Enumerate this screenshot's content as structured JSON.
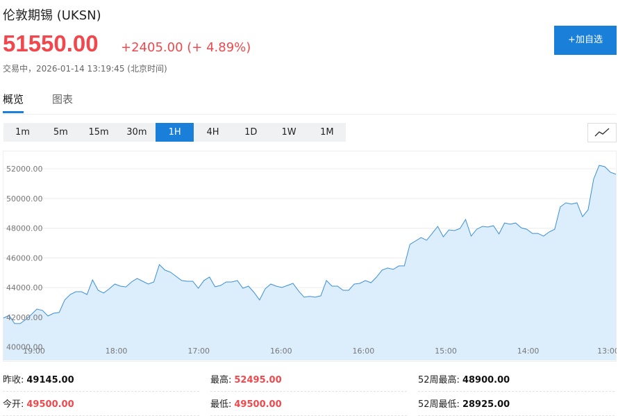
{
  "header": {
    "name": "伦敦期锡 (UKSN)",
    "price": "51550.00",
    "change": "+2405.00",
    "change_pct": "(+ 4.89%)",
    "status": "交易中，2026-01-14 13:19:45 (北京时间)",
    "watch_button": "+加自选"
  },
  "tabs": [
    "概览",
    "图表"
  ],
  "active_tab": 0,
  "periods": [
    "1m",
    "5m",
    "15m",
    "30m",
    "1H",
    "4H",
    "1D",
    "1W",
    "1M"
  ],
  "active_period": 4,
  "chart_data": {
    "type": "area",
    "x_labels": [
      "19:00",
      "18:00",
      "17:00",
      "16:00",
      "16:00",
      "15:00",
      "14:00",
      "13:00"
    ],
    "values": [
      41950,
      42140,
      41580,
      41580,
      41860,
      42190,
      42560,
      42470,
      42090,
      42280,
      42330,
      43170,
      43540,
      43730,
      43730,
      43540,
      44520,
      43820,
      43640,
      43920,
      44240,
      44100,
      44050,
      44380,
      44620,
      44430,
      44240,
      44380,
      45550,
      45180,
      45040,
      44760,
      44480,
      44430,
      44430,
      43960,
      44480,
      44710,
      44060,
      44150,
      44380,
      44380,
      44480,
      43960,
      44100,
      43680,
      43170,
      43920,
      44240,
      44100,
      44010,
      44150,
      44290,
      43780,
      43360,
      43410,
      43360,
      43450,
      44480,
      44100,
      44100,
      43820,
      43820,
      44240,
      44290,
      44480,
      44330,
      44710,
      45180,
      45320,
      45230,
      45460,
      45460,
      46910,
      47140,
      47370,
      47190,
      47650,
      48120,
      47420,
      47890,
      47840,
      47980,
      48590,
      47470,
      47930,
      48120,
      48080,
      48170,
      47610,
      48350,
      48270,
      48350,
      48030,
      47930,
      47650,
      47650,
      47470,
      47750,
      47930,
      49430,
      49710,
      49620,
      49710,
      48780,
      49240,
      51300,
      52230,
      52140,
      51770,
      51630
    ],
    "color": "#3b8fd8",
    "fill": "#dcedfc",
    "ylim": [
      39100,
      53170
    ],
    "yticks": [
      {
        "value": 40000,
        "label": "40000.00"
      },
      {
        "value": 42000,
        "label": "42000.00"
      },
      {
        "value": 44000,
        "label": "44000.00"
      },
      {
        "value": 46000,
        "label": "46000.00"
      },
      {
        "value": 48000,
        "label": "48000.00"
      },
      {
        "value": 50000,
        "label": "50000.00"
      },
      {
        "value": 52000,
        "label": "52000.00"
      }
    ],
    "grid": true
  },
  "stats": [
    {
      "label": "昨收:",
      "value": "49145.00",
      "color": "#111111"
    },
    {
      "label": "最高:",
      "value": "52495.00",
      "color": "#f0484c"
    },
    {
      "label": "52周最高:",
      "value": "48900.00",
      "color": "#111111"
    },
    {
      "label": "今开:",
      "value": "49500.00",
      "color": "#f0484c"
    },
    {
      "label": "最低:",
      "value": "49500.00",
      "color": "#f0484c"
    },
    {
      "label": "52周最低:",
      "value": "28925.00",
      "color": "#111111"
    }
  ]
}
